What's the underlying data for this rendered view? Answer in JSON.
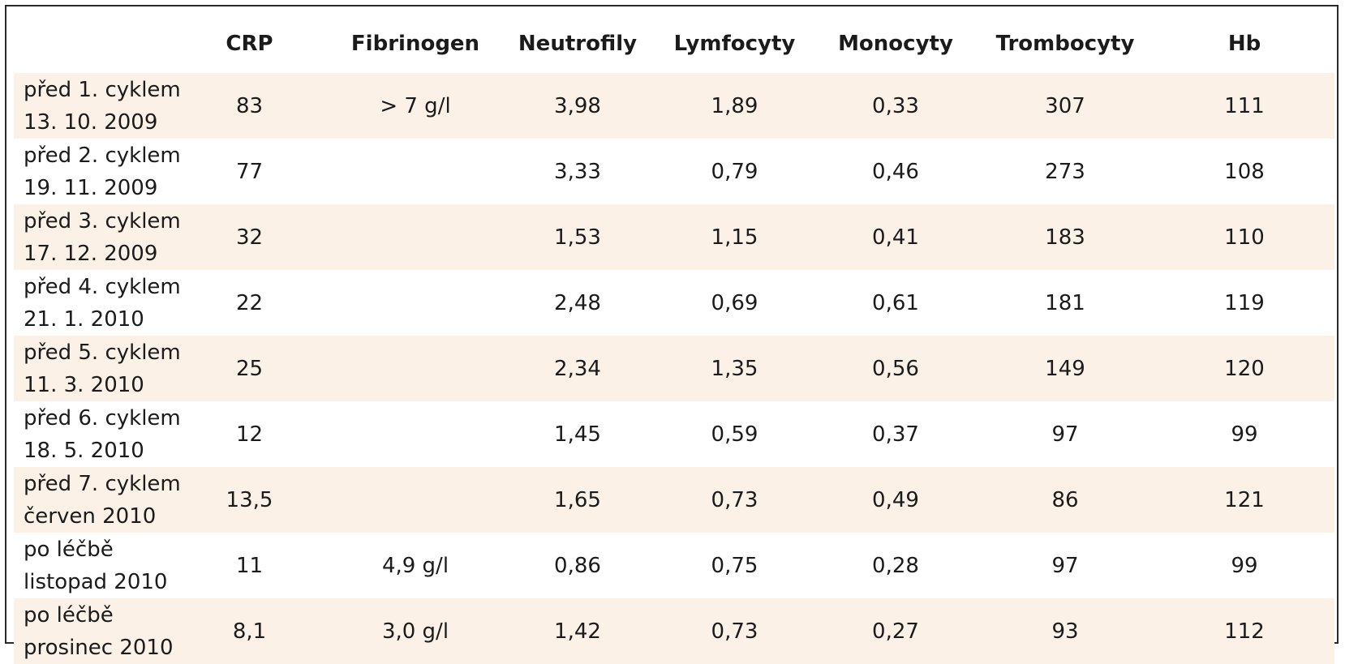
{
  "table": {
    "headers": [
      "",
      "CRP",
      "Fibrinogen",
      "Neutrofily",
      "Lymfocyty",
      "Monocyty",
      "Trombocyty",
      "Hb"
    ],
    "rows": [
      {
        "label1": "před 1. cyklem",
        "label2": "13. 10. 2009",
        "crp": "83",
        "fibrinogen": "> 7 g/l",
        "neutrofily": "3,98",
        "lymfocyty": "1,89",
        "monocyty": "0,33",
        "trombocyty": "307",
        "hb": "111"
      },
      {
        "label1": "před 2. cyklem",
        "label2": "19. 11. 2009",
        "crp": "77",
        "fibrinogen": "",
        "neutrofily": "3,33",
        "lymfocyty": "0,79",
        "monocyty": "0,46",
        "trombocyty": "273",
        "hb": "108"
      },
      {
        "label1": "před 3. cyklem",
        "label2": "17. 12. 2009",
        "crp": "32",
        "fibrinogen": "",
        "neutrofily": "1,53",
        "lymfocyty": "1,15",
        "monocyty": "0,41",
        "trombocyty": "183",
        "hb": "110"
      },
      {
        "label1": "před 4. cyklem",
        "label2": "21. 1. 2010",
        "crp": "22",
        "fibrinogen": "",
        "neutrofily": "2,48",
        "lymfocyty": "0,69",
        "monocyty": "0,61",
        "trombocyty": "181",
        "hb": "119"
      },
      {
        "label1": "před 5. cyklem",
        "label2": "11. 3. 2010",
        "crp": "25",
        "fibrinogen": "",
        "neutrofily": "2,34",
        "lymfocyty": "1,35",
        "monocyty": "0,56",
        "trombocyty": "149",
        "hb": "120"
      },
      {
        "label1": "před 6. cyklem",
        "label2": "18. 5. 2010",
        "crp": "12",
        "fibrinogen": "",
        "neutrofily": "1,45",
        "lymfocyty": "0,59",
        "monocyty": "0,37",
        "trombocyty": "97",
        "hb": "99"
      },
      {
        "label1": "před 7. cyklem",
        "label2": "červen 2010",
        "crp": "13,5",
        "fibrinogen": "",
        "neutrofily": "1,65",
        "lymfocyty": "0,73",
        "monocyty": "0,49",
        "trombocyty": "86",
        "hb": "121"
      },
      {
        "label1": "po léčbě",
        "label2": "listopad 2010",
        "crp": "11",
        "fibrinogen": "4,9 g/l",
        "neutrofily": "0,86",
        "lymfocyty": "0,75",
        "monocyty": "0,28",
        "trombocyty": "97",
        "hb": "99"
      },
      {
        "label1": "po léčbě",
        "label2": "prosinec 2010",
        "crp": "8,1",
        "fibrinogen": "3,0 g/l",
        "neutrofily": "1,42",
        "lymfocyty": "0,73",
        "monocyty": "0,27",
        "trombocyty": "93",
        "hb": "112"
      }
    ]
  },
  "colors": {
    "row_shade": "#fcf1e6",
    "border": "#2a2a2a",
    "text": "#1b1b1b"
  }
}
